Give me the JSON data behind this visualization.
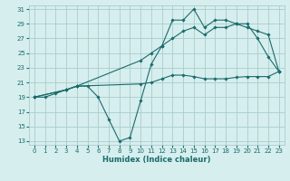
{
  "title": "",
  "xlabel": "Humidex (Indice chaleur)",
  "bg_color": "#d6eeee",
  "grid_color": "#aacccc",
  "line_color": "#1a6b6b",
  "xlim": [
    -0.5,
    23.5
  ],
  "ylim": [
    12.5,
    31.5
  ],
  "xticks": [
    0,
    1,
    2,
    3,
    4,
    5,
    6,
    7,
    8,
    9,
    10,
    11,
    12,
    13,
    14,
    15,
    16,
    17,
    18,
    19,
    20,
    21,
    22,
    23
  ],
  "yticks": [
    13,
    15,
    17,
    19,
    21,
    23,
    25,
    27,
    29,
    31
  ],
  "line1_x": [
    0,
    1,
    2,
    3,
    4,
    5,
    6,
    7,
    8,
    9,
    10,
    11,
    12,
    13,
    14,
    15,
    16,
    17,
    18,
    19,
    20,
    21,
    22,
    23
  ],
  "line1_y": [
    19,
    19,
    19.5,
    20,
    20.5,
    20.5,
    19,
    16,
    13,
    13.5,
    18.5,
    23.5,
    26,
    29.5,
    29.5,
    31,
    28.5,
    29.5,
    29.5,
    29,
    29,
    27,
    24.5,
    22.5
  ],
  "line2_x": [
    0,
    3,
    4,
    10,
    11,
    12,
    13,
    14,
    15,
    16,
    17,
    18,
    19,
    20,
    21,
    22,
    23
  ],
  "line2_y": [
    19,
    20,
    20.5,
    24,
    25,
    26,
    27,
    28,
    28.5,
    27.5,
    28.5,
    28.5,
    29,
    28.5,
    28,
    27.5,
    22.5
  ],
  "line3_x": [
    0,
    3,
    4,
    10,
    11,
    12,
    13,
    14,
    15,
    16,
    17,
    18,
    19,
    20,
    21,
    22,
    23
  ],
  "line3_y": [
    19,
    20,
    20.5,
    20.8,
    21,
    21.5,
    22,
    22,
    21.8,
    21.5,
    21.5,
    21.5,
    21.7,
    21.8,
    21.8,
    21.8,
    22.5
  ]
}
